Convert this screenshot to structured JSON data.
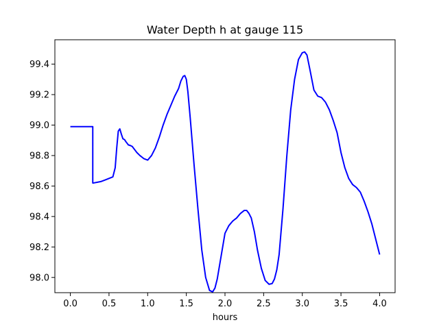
{
  "chart_data": {
    "type": "line",
    "title": "Water Depth h at gauge 115",
    "xlabel": "hours",
    "ylabel": "",
    "xlim": [
      -0.2,
      4.2
    ],
    "ylim": [
      97.9,
      99.56
    ],
    "xticks": [
      "0.0",
      "0.5",
      "1.0",
      "1.5",
      "2.0",
      "2.5",
      "3.0",
      "3.5",
      "4.0"
    ],
    "yticks": [
      "98.0",
      "98.2",
      "98.4",
      "98.6",
      "98.8",
      "99.0",
      "99.2",
      "99.4"
    ],
    "grid": false,
    "legend": "none",
    "line_color": "#0000ff",
    "series": [
      {
        "x": [
          0.0,
          0.05,
          0.1,
          0.15,
          0.2,
          0.25,
          0.29,
          0.29,
          0.3,
          0.35,
          0.4,
          0.45,
          0.5,
          0.55,
          0.58,
          0.6,
          0.62,
          0.64,
          0.66,
          0.68,
          0.7,
          0.72,
          0.75,
          0.78,
          0.8,
          0.83,
          0.86,
          0.9,
          0.95,
          1.0,
          1.05,
          1.1,
          1.15,
          1.2,
          1.25,
          1.3,
          1.35,
          1.4,
          1.43,
          1.46,
          1.48,
          1.5,
          1.52,
          1.55,
          1.6,
          1.65,
          1.7,
          1.75,
          1.8,
          1.84,
          1.87,
          1.9,
          1.95,
          2.0,
          2.05,
          2.1,
          2.15,
          2.2,
          2.25,
          2.28,
          2.31,
          2.34,
          2.38,
          2.42,
          2.47,
          2.52,
          2.57,
          2.61,
          2.64,
          2.67,
          2.7,
          2.75,
          2.8,
          2.85,
          2.9,
          2.95,
          3.0,
          3.03,
          3.06,
          3.1,
          3.15,
          3.2,
          3.25,
          3.3,
          3.35,
          3.4,
          3.45,
          3.5,
          3.55,
          3.6,
          3.65,
          3.7,
          3.75,
          3.8,
          3.85,
          3.9,
          3.95,
          4.0
        ],
        "y": [
          98.99,
          98.99,
          98.99,
          98.99,
          98.99,
          98.99,
          98.99,
          98.62,
          98.62,
          98.625,
          98.63,
          98.64,
          98.65,
          98.66,
          98.72,
          98.85,
          98.96,
          98.975,
          98.94,
          98.91,
          98.905,
          98.89,
          98.87,
          98.865,
          98.86,
          98.84,
          98.82,
          98.8,
          98.78,
          98.77,
          98.8,
          98.85,
          98.92,
          99.0,
          99.07,
          99.13,
          99.19,
          99.24,
          99.29,
          99.32,
          99.325,
          99.3,
          99.22,
          99.05,
          98.74,
          98.45,
          98.18,
          98.0,
          97.915,
          97.905,
          97.93,
          97.99,
          98.14,
          98.29,
          98.34,
          98.37,
          98.39,
          98.42,
          98.44,
          98.44,
          98.42,
          98.39,
          98.3,
          98.18,
          98.06,
          97.98,
          97.955,
          97.96,
          97.99,
          98.05,
          98.15,
          98.45,
          98.8,
          99.1,
          99.3,
          99.43,
          99.475,
          99.48,
          99.46,
          99.36,
          99.23,
          99.19,
          99.18,
          99.15,
          99.1,
          99.03,
          98.95,
          98.82,
          98.72,
          98.65,
          98.61,
          98.59,
          98.56,
          98.5,
          98.43,
          98.35,
          98.25,
          98.15
        ]
      }
    ]
  }
}
